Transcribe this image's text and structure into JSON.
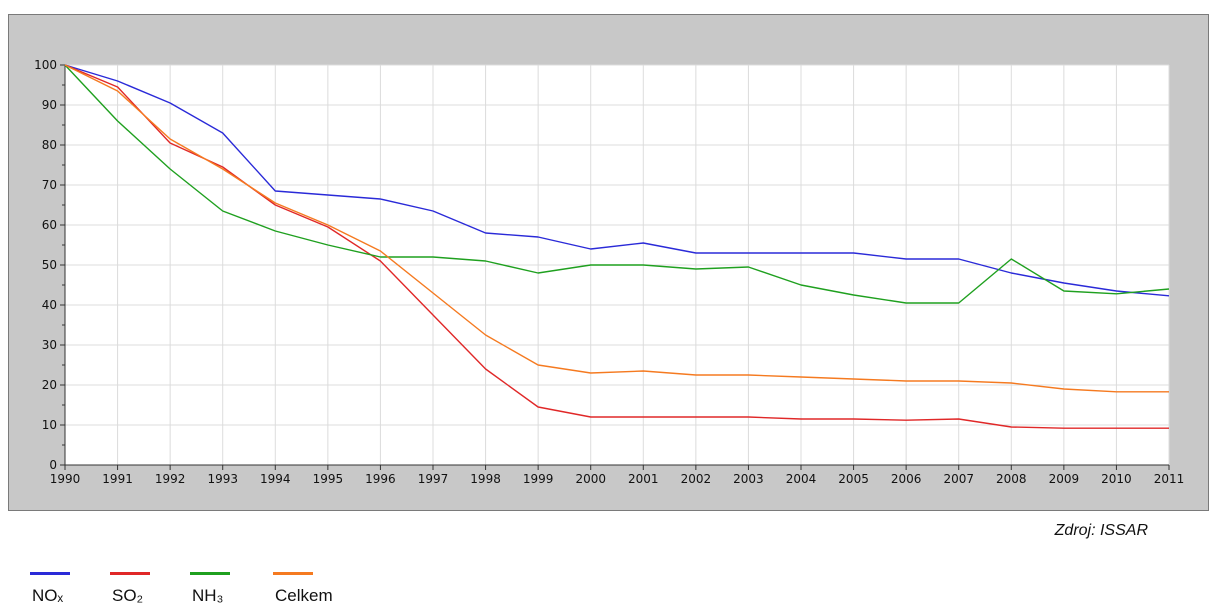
{
  "source_note": "Zdroj: ISSAR",
  "legend": [
    {
      "label": "NOₓ",
      "color": "#2a2ad8"
    },
    {
      "label": "SO₂",
      "color": "#e02828"
    },
    {
      "label": "NH₃",
      "color": "#1fa01f"
    },
    {
      "label": "Celkem",
      "color": "#f57a20"
    }
  ],
  "chart_data": {
    "type": "line",
    "title": "",
    "xlabel": "",
    "ylabel": "",
    "x": [
      1990,
      1991,
      1992,
      1993,
      1994,
      1995,
      1996,
      1997,
      1998,
      1999,
      2000,
      2001,
      2002,
      2003,
      2004,
      2005,
      2006,
      2007,
      2008,
      2009,
      2010,
      2011
    ],
    "ylim": [
      0,
      100
    ],
    "yticks": [
      0,
      10,
      20,
      30,
      40,
      50,
      60,
      70,
      80,
      90,
      100
    ],
    "grid": true,
    "legend_position": "bottom-left",
    "series": [
      {
        "name": "NOₓ",
        "color": "#2a2ad8",
        "values": [
          100,
          96,
          90.5,
          83,
          68.5,
          67.5,
          66.5,
          63.5,
          58,
          57,
          54,
          55.5,
          53,
          53,
          53,
          53,
          51.5,
          51.5,
          48,
          45.5,
          43.5,
          42.3
        ]
      },
      {
        "name": "SO₂",
        "color": "#e02828",
        "values": [
          100,
          94.5,
          80.5,
          74.5,
          65,
          59.5,
          51,
          37.5,
          24,
          14.5,
          12,
          12,
          12,
          12,
          11.5,
          11.5,
          11.2,
          11.5,
          9.5,
          9.2,
          9.2,
          9.2
        ]
      },
      {
        "name": "NH₃",
        "color": "#1fa01f",
        "values": [
          100,
          86,
          74,
          63.5,
          58.5,
          55,
          52,
          52,
          51,
          48,
          50,
          50,
          49,
          49.5,
          45,
          42.5,
          40.5,
          40.5,
          51.5,
          43.5,
          42.8,
          44
        ]
      },
      {
        "name": "Celkem",
        "color": "#f57a20",
        "values": [
          100,
          93.5,
          81.5,
          74,
          65.5,
          60,
          53.5,
          43,
          32.5,
          25,
          23,
          23.5,
          22.5,
          22.5,
          22,
          21.5,
          21,
          21,
          20.5,
          19,
          18.3,
          18.3
        ]
      }
    ]
  }
}
